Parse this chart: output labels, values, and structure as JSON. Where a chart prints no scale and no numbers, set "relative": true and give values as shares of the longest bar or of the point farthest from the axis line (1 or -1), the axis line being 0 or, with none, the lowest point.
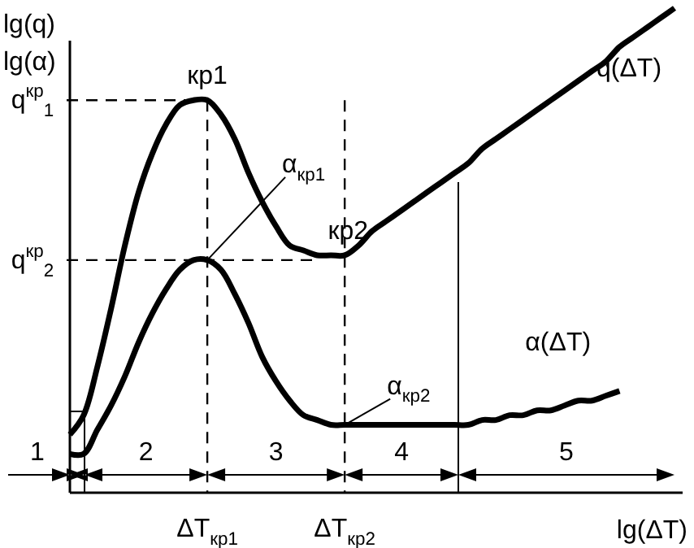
{
  "chart_data": {
    "type": "line",
    "relative": true,
    "xlabel": "lg(ΔT)",
    "ylabel": "lg(q)",
    "categories": [
      null,
      null,
      null,
      null,
      null,
      null,
      null,
      null,
      null,
      null,
      "ΔT$_{кр1}$",
      null,
      null,
      null,
      null,
      null,
      null,
      null,
      null,
      null,
      "ΔT$_{кр2}$",
      null,
      null,
      null,
      null,
      null,
      null,
      null,
      null,
      null,
      null,
      null,
      null,
      null,
      null,
      null,
      null,
      null,
      null,
      null,
      null,
      null,
      null,
      null,
      null
    ],
    "series": [
      {
        "name": "q(ΔT)",
        "color": "#000000",
        "values": [
          0.12,
          0.16,
          0.26,
          0.38,
          0.51,
          0.62,
          0.7,
          0.76,
          0.8,
          0.81,
          0.81,
          0.78,
          0.73,
          0.66,
          0.6,
          0.55,
          0.51,
          0.5,
          0.49,
          0.49,
          0.49,
          0.51,
          0.54,
          0.56,
          0.58,
          0.6,
          0.62,
          0.64,
          0.66,
          0.68,
          0.71,
          0.73,
          0.75,
          0.77,
          0.79,
          0.81,
          0.83,
          0.85,
          0.87,
          0.89,
          0.92,
          0.94,
          0.96,
          0.98,
          1.0
        ]
      },
      {
        "name": "α(ΔT)",
        "color": "#000000",
        "values": [
          0.08,
          0.08,
          0.13,
          0.18,
          0.24,
          0.31,
          0.37,
          0.42,
          0.46,
          0.48,
          0.48,
          0.46,
          0.41,
          0.35,
          0.28,
          0.23,
          0.19,
          0.16,
          0.15,
          0.14,
          0.14,
          0.14,
          0.14,
          0.14,
          0.14,
          0.14,
          0.14,
          0.14,
          0.14,
          0.14,
          0.15,
          0.15,
          0.16,
          0.16,
          0.17,
          0.17,
          0.18,
          0.19,
          0.19,
          0.2,
          0.21,
          null,
          null,
          null,
          null
        ]
      }
    ],
    "ref_lines": [
      {
        "axis": "x",
        "value": "ΔT$_{кр1}$",
        "line_style": "dashed"
      },
      {
        "axis": "x",
        "value": "ΔT$_{кр2}$",
        "line_style": "dashed"
      },
      {
        "axis": "y",
        "value": 0.81,
        "label": "q$^{кр}$$_{1}$",
        "line_style": "dashed"
      },
      {
        "axis": "y",
        "value": 0.48,
        "label": "q$^{кр}$$_{2}$",
        "line_style": "dashed"
      }
    ],
    "annotations": [
      "lg(α)",
      "1",
      "2",
      "3",
      "4",
      "5",
      {
        "text": "кр1",
        "x": "ΔT$_{кр1}$",
        "y": 0.81
      },
      {
        "text": "кр2",
        "x": "ΔT$_{кр2}$",
        "y": 0.49
      },
      {
        "text": "α$_{кр1}$",
        "x": "ΔT$_{кр1}$",
        "y": 0.48
      },
      {
        "text": "α$_{кр2}$",
        "x": "ΔT$_{кр2}$",
        "y": 0.14
      }
    ],
    "line_style": "solid",
    "marker": "none",
    "grid": false,
    "legend": false
  }
}
